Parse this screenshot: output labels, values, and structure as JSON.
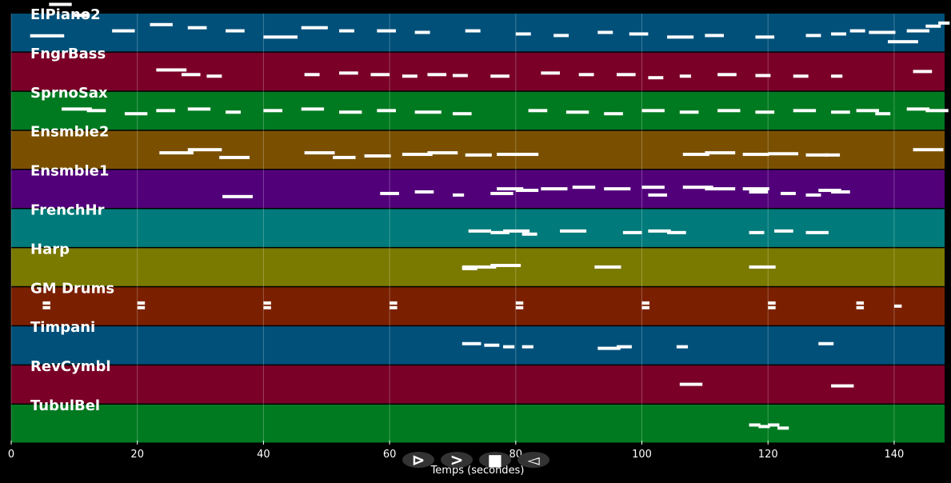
{
  "chart_data": {
    "type": "piano-roll",
    "xlabel": "Temps (secondes)",
    "xlim": [
      0,
      148
    ],
    "x_ticks": [
      0,
      20,
      40,
      60,
      80,
      100,
      120,
      140
    ],
    "grid": true,
    "tracks": [
      {
        "name": "ElPiano2",
        "color": "#00507a",
        "notes": [
          [
            3,
            44,
            0.9
          ],
          [
            6,
            145,
            0.6
          ],
          [
            10,
            110,
            0.4
          ],
          [
            16,
            60,
            0.6
          ],
          [
            22,
            80,
            0.6
          ],
          [
            28,
            70,
            0.5
          ],
          [
            34,
            60,
            0.5
          ],
          [
            40,
            40,
            0.9
          ],
          [
            46,
            70,
            0.7
          ],
          [
            52,
            60,
            0.4
          ],
          [
            58,
            60,
            0.5
          ],
          [
            64,
            55,
            0.4
          ],
          [
            72,
            60,
            0.4
          ],
          [
            80,
            50,
            0.4
          ],
          [
            86,
            45,
            0.4
          ],
          [
            93,
            55,
            0.4
          ],
          [
            98,
            50,
            0.5
          ],
          [
            104,
            40,
            0.7
          ],
          [
            110,
            45,
            0.5
          ],
          [
            118,
            40,
            0.5
          ],
          [
            126,
            45,
            0.4
          ],
          [
            130,
            50,
            0.4
          ],
          [
            133,
            60,
            0.4
          ],
          [
            136,
            55,
            0.7
          ],
          [
            139,
            25,
            0.8
          ],
          [
            142,
            60,
            0.6
          ],
          [
            145,
            75,
            0.4
          ],
          [
            147,
            85,
            0.3
          ]
        ]
      },
      {
        "name": "FngrBass",
        "color": "#7a0028",
        "notes": [
          [
            23,
            60,
            0.8
          ],
          [
            27,
            45,
            0.5
          ],
          [
            31,
            40,
            0.4
          ],
          [
            46.5,
            45,
            0.4
          ],
          [
            52,
            50,
            0.5
          ],
          [
            57,
            45,
            0.5
          ],
          [
            62,
            40,
            0.4
          ],
          [
            66,
            45,
            0.5
          ],
          [
            70,
            42,
            0.4
          ],
          [
            76,
            40,
            0.5
          ],
          [
            84,
            50,
            0.5
          ],
          [
            90,
            45,
            0.4
          ],
          [
            96,
            45,
            0.5
          ],
          [
            101,
            35,
            0.4
          ],
          [
            106,
            40,
            0.3
          ],
          [
            112,
            45,
            0.5
          ],
          [
            118,
            42,
            0.4
          ],
          [
            124,
            40,
            0.4
          ],
          [
            130,
            40,
            0.3
          ],
          [
            143,
            55,
            0.5
          ]
        ]
      },
      {
        "name": "SprnoSax",
        "color": "#007a20",
        "notes": [
          [
            8,
            60,
            0.8
          ],
          [
            12,
            55,
            0.5
          ],
          [
            18,
            45,
            0.6
          ],
          [
            23,
            55,
            0.5
          ],
          [
            28,
            60,
            0.6
          ],
          [
            34,
            50,
            0.4
          ],
          [
            40,
            55,
            0.5
          ],
          [
            46,
            60,
            0.6
          ],
          [
            52,
            50,
            0.6
          ],
          [
            58,
            55,
            0.5
          ],
          [
            64,
            50,
            0.7
          ],
          [
            70,
            45,
            0.5
          ],
          [
            82,
            55,
            0.5
          ],
          [
            88,
            50,
            0.6
          ],
          [
            94,
            45,
            0.5
          ],
          [
            100,
            55,
            0.6
          ],
          [
            106,
            50,
            0.5
          ],
          [
            112,
            55,
            0.6
          ],
          [
            118,
            50,
            0.5
          ],
          [
            124,
            55,
            0.6
          ],
          [
            130,
            50,
            0.5
          ],
          [
            134,
            55,
            0.6
          ],
          [
            137,
            45,
            0.4
          ],
          [
            142,
            60,
            0.6
          ],
          [
            145,
            55,
            0.6
          ]
        ]
      },
      {
        "name": "Ensmble2",
        "color": "#7a5000",
        "notes": [
          [
            23.5,
            45,
            0.9
          ],
          [
            28,
            55,
            0.9
          ],
          [
            33,
            30,
            0.8
          ],
          [
            46.5,
            45,
            0.8
          ],
          [
            51,
            30,
            0.6
          ],
          [
            56,
            35,
            0.7
          ],
          [
            62,
            40,
            0.8
          ],
          [
            66,
            45,
            0.8
          ],
          [
            72,
            38,
            0.7
          ],
          [
            77,
            40,
            0.6
          ],
          [
            80,
            40,
            0.6
          ],
          [
            106.5,
            40,
            0.7
          ],
          [
            110,
            45,
            0.8
          ],
          [
            116,
            40,
            0.7
          ],
          [
            120,
            42,
            0.8
          ],
          [
            126,
            38,
            0.6
          ],
          [
            129,
            38,
            0.4
          ],
          [
            143,
            55,
            0.8
          ]
        ]
      },
      {
        "name": "Ensmble1",
        "color": "#52007a",
        "notes": [
          [
            33.5,
            30,
            0.8
          ],
          [
            58.5,
            40,
            0.5
          ],
          [
            64,
            45,
            0.5
          ],
          [
            70,
            35,
            0.3
          ],
          [
            76,
            40,
            0.6
          ],
          [
            77,
            55,
            0.7
          ],
          [
            80,
            50,
            0.6
          ],
          [
            84,
            55,
            0.7
          ],
          [
            89,
            60,
            0.6
          ],
          [
            94,
            55,
            0.7
          ],
          [
            100,
            60,
            0.6
          ],
          [
            101,
            35,
            0.5
          ],
          [
            106.5,
            60,
            0.8
          ],
          [
            110,
            55,
            0.8
          ],
          [
            116,
            55,
            0.7
          ],
          [
            117,
            45,
            0.5
          ],
          [
            122,
            40,
            0.4
          ],
          [
            126,
            35,
            0.4
          ],
          [
            128,
            50,
            0.6
          ],
          [
            130,
            45,
            0.5
          ]
        ]
      },
      {
        "name": "FrenchHr",
        "color": "#007a7a",
        "notes": [
          [
            72.5,
            45,
            0.6
          ],
          [
            76,
            40,
            0.5
          ],
          [
            78,
            45,
            0.7
          ],
          [
            81,
            35,
            0.4
          ],
          [
            87,
            45,
            0.7
          ],
          [
            97,
            40,
            0.5
          ],
          [
            101,
            45,
            0.6
          ],
          [
            104,
            40,
            0.5
          ],
          [
            117,
            40,
            0.4
          ],
          [
            121,
            45,
            0.5
          ],
          [
            126,
            40,
            0.6
          ]
        ]
      },
      {
        "name": "Harp",
        "color": "#7a7a00",
        "notes": [
          [
            71.5,
            55,
            0.9
          ],
          [
            71.5,
            50,
            0.4
          ],
          [
            76,
            60,
            0.8
          ],
          [
            92.5,
            55,
            0.7
          ],
          [
            117,
            55,
            0.7
          ]
        ]
      },
      {
        "name": "GM Drums",
        "color": "#7a2000",
        "notes": [
          [
            5,
            65,
            0.2
          ],
          [
            5,
            50,
            0.2
          ],
          [
            20,
            65,
            0.2
          ],
          [
            20,
            50,
            0.2
          ],
          [
            40,
            65,
            0.2
          ],
          [
            40,
            50,
            0.2
          ],
          [
            60,
            65,
            0.2
          ],
          [
            60,
            50,
            0.2
          ],
          [
            80,
            65,
            0.2
          ],
          [
            80,
            50,
            0.2
          ],
          [
            100,
            65,
            0.2
          ],
          [
            100,
            50,
            0.2
          ],
          [
            120,
            65,
            0.2
          ],
          [
            120,
            50,
            0.2
          ],
          [
            134,
            65,
            0.2
          ],
          [
            134,
            50,
            0.2
          ],
          [
            140,
            55,
            0.2
          ]
        ]
      },
      {
        "name": "Timpani",
        "color": "#00507a",
        "notes": [
          [
            71.5,
            60,
            0.5
          ],
          [
            75,
            55,
            0.4
          ],
          [
            78,
            50,
            0.3
          ],
          [
            81,
            50,
            0.3
          ],
          [
            93,
            45,
            0.6
          ],
          [
            96,
            50,
            0.4
          ],
          [
            105.5,
            50,
            0.3
          ],
          [
            128,
            60,
            0.4
          ]
        ]
      },
      {
        "name": "RevCymbl",
        "color": "#7a0028",
        "notes": [
          [
            106,
            55,
            0.6
          ],
          [
            130,
            50,
            0.6
          ]
        ]
      },
      {
        "name": "TubulBel",
        "color": "#007a20",
        "notes": [
          [
            117,
            50,
            0.3
          ],
          [
            118.5,
            45,
            0.3
          ],
          [
            120,
            50,
            0.3
          ],
          [
            121.5,
            40,
            0.3
          ]
        ]
      }
    ]
  },
  "controls": [
    {
      "name": "step-forward-button",
      "glyph": "⊳"
    },
    {
      "name": "play-button",
      "glyph": ">"
    },
    {
      "name": "stop-button",
      "glyph": "■"
    },
    {
      "name": "step-back-button",
      "glyph": "◅"
    }
  ]
}
